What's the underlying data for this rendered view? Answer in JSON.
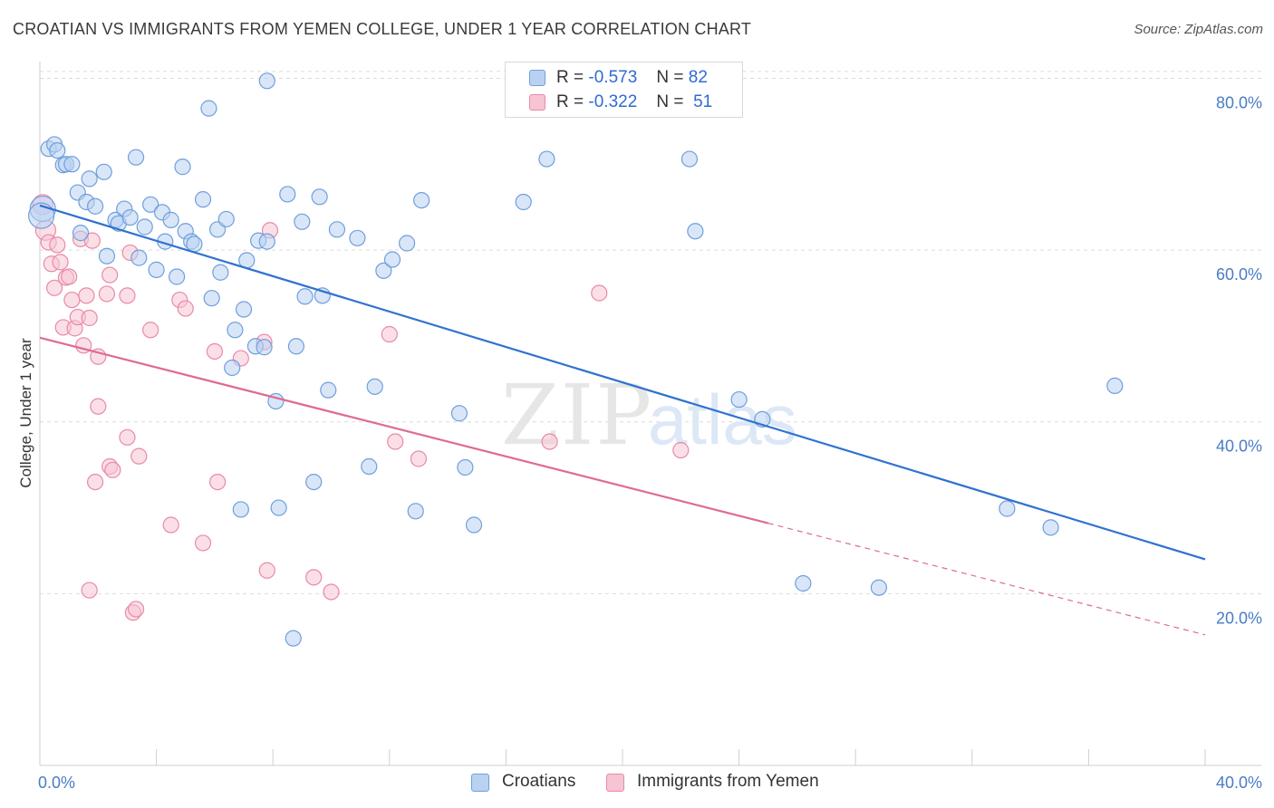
{
  "title": "CROATIAN VS IMMIGRANTS FROM YEMEN COLLEGE, UNDER 1 YEAR CORRELATION CHART",
  "source": "Source: ZipAtlas.com",
  "watermark": {
    "zip": "ZIP",
    "atlas": "atlas"
  },
  "legend": {
    "rows": [
      {
        "r_label": "R =",
        "r_value": "-0.573",
        "n_label": "N =",
        "n_value": "82"
      },
      {
        "r_label": "R =",
        "r_value": "-0.322",
        "n_label": "N =",
        "n_value": "51"
      }
    ]
  },
  "bottom_legend": [
    "Croatians",
    "Immigrants from Yemen"
  ],
  "colors": {
    "blue_fill": "#b9d2f2",
    "blue_stroke": "#6f9fdc",
    "blue_line": "#2f72d0",
    "pink_fill": "#f7c4d4",
    "pink_stroke": "#e88aa8",
    "pink_line": "#e06a92",
    "grid": "#dcdcdc",
    "axis_text": "#4a7cc4"
  },
  "chart_data": {
    "type": "scatter",
    "title": "CROATIAN VS IMMIGRANTS FROM YEMEN COLLEGE, UNDER 1 YEAR CORRELATION CHART",
    "ylabel": "College, Under 1 year",
    "xlabel": "",
    "xlim": [
      0,
      40
    ],
    "ylim": [
      0,
      83
    ],
    "x_ticks_labels": [
      "0.0%",
      "40.0%"
    ],
    "y_ticks": [
      20,
      40,
      60,
      80
    ],
    "y_ticks_labels": [
      "20.0%",
      "40.0%",
      "60.0%",
      "80.0%"
    ],
    "grid": true,
    "series": [
      {
        "name": "Croatians",
        "R": -0.573,
        "N": 82,
        "trend": {
          "x0": 0,
          "y0": 65.2,
          "x1": 40,
          "y1": 24.0
        },
        "points": [
          [
            0.1,
            64.8
          ],
          [
            0.3,
            71.8
          ],
          [
            0.5,
            72.3
          ],
          [
            0.6,
            71.6
          ],
          [
            0.8,
            69.9
          ],
          [
            0.9,
            70.0
          ],
          [
            1.1,
            70.0
          ],
          [
            1.3,
            66.7
          ],
          [
            1.4,
            62.0
          ],
          [
            1.6,
            65.6
          ],
          [
            1.7,
            68.3
          ],
          [
            1.9,
            65.1
          ],
          [
            2.2,
            69.1
          ],
          [
            2.3,
            59.3
          ],
          [
            2.6,
            63.5
          ],
          [
            2.7,
            63.1
          ],
          [
            2.9,
            64.8
          ],
          [
            3.1,
            63.8
          ],
          [
            3.3,
            70.8
          ],
          [
            3.4,
            59.1
          ],
          [
            3.6,
            62.7
          ],
          [
            3.8,
            65.3
          ],
          [
            4.0,
            57.7
          ],
          [
            4.2,
            64.4
          ],
          [
            4.3,
            61.0
          ],
          [
            4.5,
            63.5
          ],
          [
            4.7,
            56.9
          ],
          [
            4.9,
            69.7
          ],
          [
            5.0,
            62.2
          ],
          [
            5.2,
            61.0
          ],
          [
            5.3,
            60.7
          ],
          [
            5.6,
            65.9
          ],
          [
            5.8,
            76.5
          ],
          [
            5.9,
            54.4
          ],
          [
            6.1,
            62.4
          ],
          [
            6.2,
            57.4
          ],
          [
            6.4,
            63.6
          ],
          [
            6.6,
            46.3
          ],
          [
            6.7,
            50.7
          ],
          [
            6.9,
            29.8
          ],
          [
            7.0,
            53.1
          ],
          [
            7.1,
            58.8
          ],
          [
            7.4,
            48.8
          ],
          [
            7.5,
            61.1
          ],
          [
            7.7,
            48.7
          ],
          [
            7.8,
            61.0
          ],
          [
            7.8,
            79.7
          ],
          [
            8.1,
            42.4
          ],
          [
            8.2,
            30.0
          ],
          [
            8.5,
            66.5
          ],
          [
            8.7,
            14.8
          ],
          [
            8.8,
            48.8
          ],
          [
            9.0,
            63.3
          ],
          [
            9.1,
            54.6
          ],
          [
            9.4,
            33.0
          ],
          [
            9.6,
            66.2
          ],
          [
            9.7,
            54.7
          ],
          [
            9.9,
            43.7
          ],
          [
            10.2,
            62.4
          ],
          [
            10.9,
            61.4
          ],
          [
            11.3,
            34.8
          ],
          [
            11.5,
            44.1
          ],
          [
            11.8,
            57.6
          ],
          [
            12.1,
            58.9
          ],
          [
            12.6,
            60.8
          ],
          [
            12.9,
            29.6
          ],
          [
            13.1,
            65.8
          ],
          [
            14.4,
            41.0
          ],
          [
            14.6,
            34.7
          ],
          [
            14.9,
            28.0
          ],
          [
            16.6,
            65.6
          ],
          [
            17.4,
            70.6
          ],
          [
            22.3,
            70.6
          ],
          [
            22.5,
            62.2
          ],
          [
            24.0,
            42.6
          ],
          [
            24.8,
            40.3
          ],
          [
            26.2,
            21.2
          ],
          [
            28.8,
            20.7
          ],
          [
            33.2,
            29.9
          ],
          [
            34.7,
            27.7
          ],
          [
            36.9,
            44.2
          ],
          [
            0.05,
            64.0
          ]
        ]
      },
      {
        "name": "Immigrants from Yemen",
        "R": -0.322,
        "N": 51,
        "trend": {
          "x0": 0,
          "y0": 49.8,
          "x1": 25,
          "y1": 28.2,
          "dash_to": {
            "x": 40,
            "y": 15.2
          }
        },
        "points": [
          [
            0.1,
            65.3
          ],
          [
            0.2,
            62.3
          ],
          [
            0.3,
            60.9
          ],
          [
            0.4,
            58.4
          ],
          [
            0.5,
            55.6
          ],
          [
            0.6,
            60.6
          ],
          [
            0.7,
            58.6
          ],
          [
            0.8,
            51.0
          ],
          [
            0.9,
            56.8
          ],
          [
            1.0,
            56.9
          ],
          [
            1.1,
            54.2
          ],
          [
            1.2,
            50.9
          ],
          [
            1.3,
            52.2
          ],
          [
            1.4,
            61.3
          ],
          [
            1.5,
            48.9
          ],
          [
            1.6,
            54.7
          ],
          [
            1.7,
            52.1
          ],
          [
            1.8,
            61.1
          ],
          [
            1.9,
            33.0
          ],
          [
            1.7,
            20.4
          ],
          [
            2.0,
            47.6
          ],
          [
            2.0,
            41.8
          ],
          [
            2.3,
            54.9
          ],
          [
            2.4,
            34.8
          ],
          [
            2.4,
            57.1
          ],
          [
            2.5,
            34.4
          ],
          [
            3.0,
            54.7
          ],
          [
            3.0,
            38.2
          ],
          [
            3.1,
            59.7
          ],
          [
            3.2,
            17.8
          ],
          [
            3.3,
            18.2
          ],
          [
            3.4,
            36.0
          ],
          [
            3.8,
            50.7
          ],
          [
            4.5,
            28.0
          ],
          [
            4.8,
            54.2
          ],
          [
            5.0,
            53.2
          ],
          [
            5.6,
            25.9
          ],
          [
            6.0,
            48.2
          ],
          [
            6.1,
            33.0
          ],
          [
            6.9,
            47.4
          ],
          [
            7.7,
            49.3
          ],
          [
            7.8,
            22.7
          ],
          [
            7.9,
            62.3
          ],
          [
            9.4,
            21.9
          ],
          [
            10.0,
            20.2
          ],
          [
            12.0,
            50.2
          ],
          [
            12.2,
            37.7
          ],
          [
            13.0,
            35.7
          ],
          [
            17.5,
            37.7
          ],
          [
            19.2,
            55.0
          ],
          [
            22.0,
            36.7
          ]
        ]
      }
    ]
  }
}
